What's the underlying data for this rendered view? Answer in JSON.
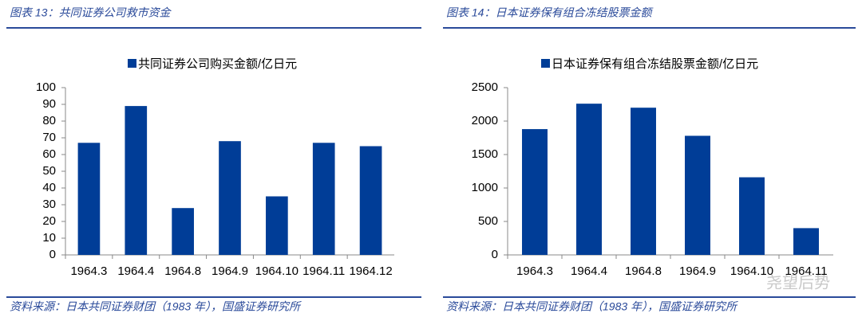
{
  "chart_data": [
    {
      "type": "bar",
      "title": "图表 13：共同证券公司救市资金",
      "source": "资料来源：日本共同证券财团（1983 年），国盛证券研究所",
      "categories": [
        "1964.3",
        "1964.4",
        "1964.8",
        "1964.9",
        "1964.10",
        "1964.11",
        "1964.12"
      ],
      "series": [
        {
          "name": "共同证券公司购买金额/亿日元",
          "color": "#003d97",
          "values": [
            67,
            89,
            28,
            68,
            35,
            67,
            65
          ]
        }
      ],
      "ylim": [
        0,
        100
      ],
      "yticks": [
        0,
        10,
        20,
        30,
        40,
        50,
        60,
        70,
        80,
        90,
        100
      ],
      "grid": false
    },
    {
      "type": "bar",
      "title": "图表 14：日本证券保有组合冻结股票金额",
      "source": "资料来源：日本共同证券财团（1983 年），国盛证券研究所",
      "categories": [
        "1964.3",
        "1964.4",
        "1964.8",
        "1964.9",
        "1964.10",
        "1964.11"
      ],
      "series": [
        {
          "name": "日本证券保有组合冻结股票金额/亿日元",
          "color": "#003d97",
          "values": [
            1880,
            2260,
            2200,
            1780,
            1160,
            400
          ]
        }
      ],
      "ylim": [
        0,
        2500
      ],
      "yticks": [
        0,
        500,
        1000,
        1500,
        2000,
        2500
      ],
      "grid": false
    }
  ],
  "watermark": "尧望后势"
}
